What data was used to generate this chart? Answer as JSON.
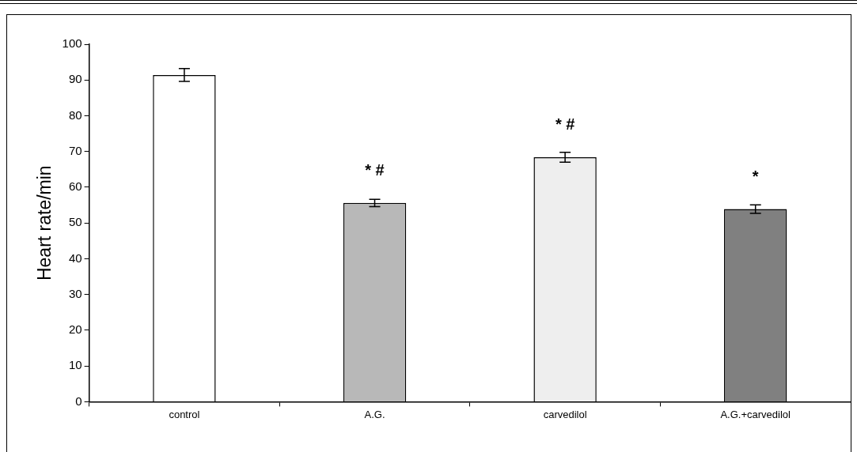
{
  "chart_data": {
    "type": "bar",
    "ylabel": "Heart rate/min",
    "categories": [
      "control",
      "A.G.",
      "carvedilol",
      "A.G.+carvedilol"
    ],
    "values": [
      91.4,
      55.6,
      68.4,
      53.9
    ],
    "errors": [
      1.8,
      1.0,
      1.4,
      1.2
    ],
    "colors": [
      "#ffffff",
      "#b8b8b8",
      "#eeeeee",
      "#808080"
    ],
    "ylim": [
      0,
      100
    ],
    "yticks": [
      0,
      10,
      20,
      30,
      40,
      50,
      60,
      70,
      80,
      90,
      100
    ],
    "annotations": [
      {
        "text": "* #",
        "x": "A.G.",
        "y": 55.6
      },
      {
        "text": "* #",
        "x": "carvedilol",
        "y": 68.4
      },
      {
        "text": "*",
        "x": "A.G.+carvedilol",
        "y": 53.9
      }
    ],
    "grid": false,
    "legend": false
  }
}
